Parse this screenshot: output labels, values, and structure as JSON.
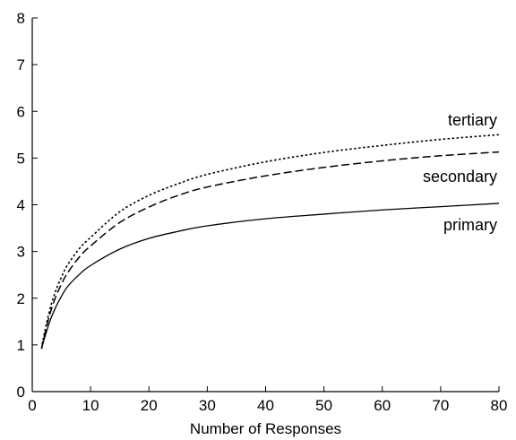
{
  "chart_data": {
    "type": "line",
    "title": "",
    "xlabel": "Number of Responses",
    "ylabel": "",
    "xlim": [
      0,
      80
    ],
    "ylim": [
      0,
      8
    ],
    "x_ticks": [
      0,
      10,
      20,
      30,
      40,
      50,
      60,
      70,
      80
    ],
    "y_ticks": [
      0,
      1,
      2,
      3,
      4,
      5,
      6,
      7,
      8
    ],
    "grid": false,
    "legend": "inline labels at right end of lines",
    "series": [
      {
        "name": "tertiary",
        "style": "dotted",
        "x": [
          1.6,
          2,
          3,
          4,
          5,
          6,
          8,
          10,
          15,
          20,
          25,
          30,
          40,
          50,
          60,
          70,
          80
        ],
        "y": [
          0.92,
          1.2,
          1.75,
          2.15,
          2.45,
          2.7,
          3.05,
          3.3,
          3.85,
          4.2,
          4.45,
          4.65,
          4.92,
          5.12,
          5.27,
          5.4,
          5.5
        ]
      },
      {
        "name": "secondary",
        "style": "dashed",
        "x": [
          1.6,
          2,
          3,
          4,
          5,
          6,
          8,
          10,
          15,
          20,
          25,
          30,
          40,
          50,
          60,
          70,
          80
        ],
        "y": [
          0.92,
          1.15,
          1.65,
          2.02,
          2.3,
          2.53,
          2.87,
          3.12,
          3.62,
          3.95,
          4.2,
          4.38,
          4.62,
          4.8,
          4.94,
          5.05,
          5.13
        ]
      },
      {
        "name": "primary",
        "style": "solid",
        "x": [
          1.6,
          2,
          3,
          4,
          5,
          6,
          8,
          10,
          15,
          20,
          25,
          30,
          40,
          50,
          60,
          70,
          80
        ],
        "y": [
          0.92,
          1.1,
          1.5,
          1.8,
          2.04,
          2.24,
          2.5,
          2.7,
          3.05,
          3.28,
          3.43,
          3.55,
          3.7,
          3.8,
          3.89,
          3.96,
          4.03
        ]
      }
    ]
  }
}
